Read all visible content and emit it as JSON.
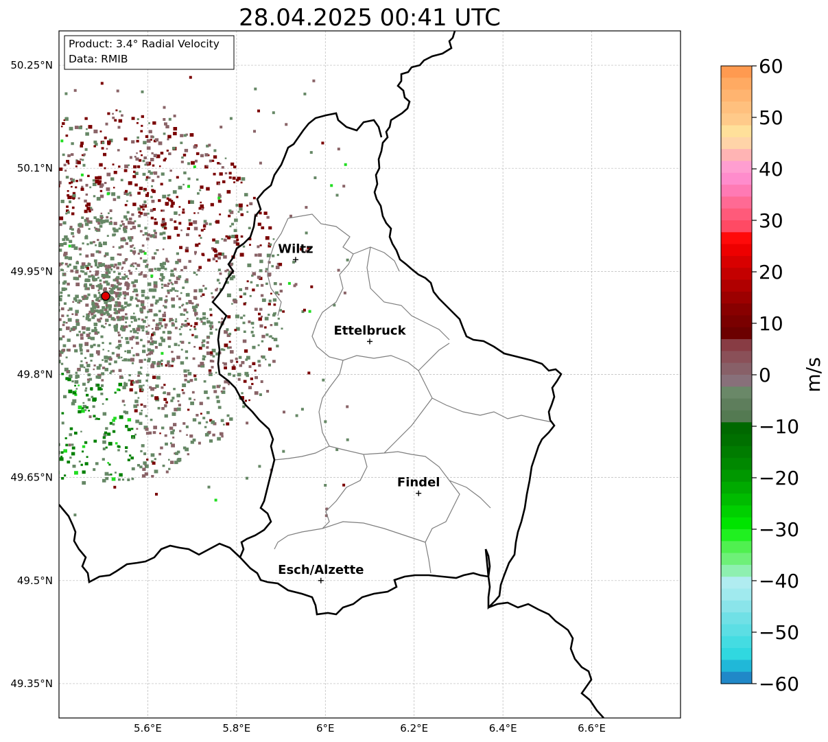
{
  "title": "28.04.2025 00:41 UTC",
  "info": {
    "product": "Product: 3.4° Radial Velocity",
    "data": "Data: RMIB"
  },
  "axes": {
    "lon_ticks": [
      {
        "value": 5.6,
        "label": "5.6°E"
      },
      {
        "value": 5.8,
        "label": "5.8°E"
      },
      {
        "value": 6.0,
        "label": "6°E"
      },
      {
        "value": 6.2,
        "label": "6.2°E"
      },
      {
        "value": 6.4,
        "label": "6.4°E"
      },
      {
        "value": 6.6,
        "label": "6.6°E"
      }
    ],
    "lat_ticks": [
      {
        "value": 50.25,
        "label": "50.25°N"
      },
      {
        "value": 50.1,
        "label": "50.1°N"
      },
      {
        "value": 49.95,
        "label": "49.95°N"
      },
      {
        "value": 49.8,
        "label": "49.8°N"
      },
      {
        "value": 49.65,
        "label": "49.65°N"
      },
      {
        "value": 49.5,
        "label": "49.5°N"
      },
      {
        "value": 49.35,
        "label": "49.35°N"
      }
    ],
    "lon_range": [
      5.4,
      6.8
    ],
    "lat_range": [
      49.3,
      50.3
    ],
    "grid": true
  },
  "cities": [
    {
      "name": "Wiltz",
      "lon": 5.933,
      "lat": 49.967
    },
    {
      "name": "Ettelbruck",
      "lon": 6.1,
      "lat": 49.848
    },
    {
      "name": "Findel",
      "lon": 6.21,
      "lat": 49.627
    },
    {
      "name": "Esch/Alzette",
      "lon": 5.99,
      "lat": 49.5
    }
  ],
  "radar": {
    "lon": 5.505,
    "lat": 49.914,
    "marker_color": "#e00000"
  },
  "colorbar": {
    "label": "m/s",
    "range": [
      -60,
      60
    ],
    "ticks": [
      {
        "value": 60,
        "label": "60"
      },
      {
        "value": 50,
        "label": "50"
      },
      {
        "value": 40,
        "label": "40"
      },
      {
        "value": 30,
        "label": "30"
      },
      {
        "value": 20,
        "label": "20"
      },
      {
        "value": 10,
        "label": "10"
      },
      {
        "value": 0,
        "label": "0"
      },
      {
        "value": -10,
        "label": "−10"
      },
      {
        "value": -20,
        "label": "−20"
      },
      {
        "value": -30,
        "label": "−30"
      },
      {
        "value": -40,
        "label": "−40"
      },
      {
        "value": -50,
        "label": "−50"
      },
      {
        "value": -60,
        "label": "−60"
      }
    ],
    "colors_top_to_bottom": [
      "#ff9a50",
      "#ffaa62",
      "#ffb470",
      "#ffc07e",
      "#ffca8a",
      "#ffe09a",
      "#ffd4a8",
      "#ffb4b4",
      "#ff9ed0",
      "#ff8ccc",
      "#ff7ab4",
      "#ff6a94",
      "#ff5a7a",
      "#ff4a64",
      "#ff0a0a",
      "#ee0000",
      "#d80000",
      "#c40000",
      "#b00000",
      "#9c0000",
      "#880000",
      "#7a0000",
      "#6c0000",
      "#883c44",
      "#8a5058",
      "#886068",
      "#88707a",
      "#6a8868",
      "#5e7e5c",
      "#547a52",
      "#006800",
      "#007000",
      "#007c00",
      "#008800",
      "#009800",
      "#00aa00",
      "#00bc00",
      "#00d000",
      "#00e400",
      "#20f020",
      "#50f050",
      "#6ef078",
      "#8ef0b0",
      "#b0ecf0",
      "#a0eaee",
      "#8ae4ea",
      "#70e0e6",
      "#5cdee4",
      "#44dce2",
      "#30d8e0",
      "#20b8d8",
      "#2088c8"
    ]
  },
  "legend_colors": {
    "outbound": "#7a0000",
    "near_zero_pos": "#8a6468",
    "near_zero_neg": "#668866",
    "inbound": "#008000",
    "inbound_bright": "#22dd22"
  }
}
